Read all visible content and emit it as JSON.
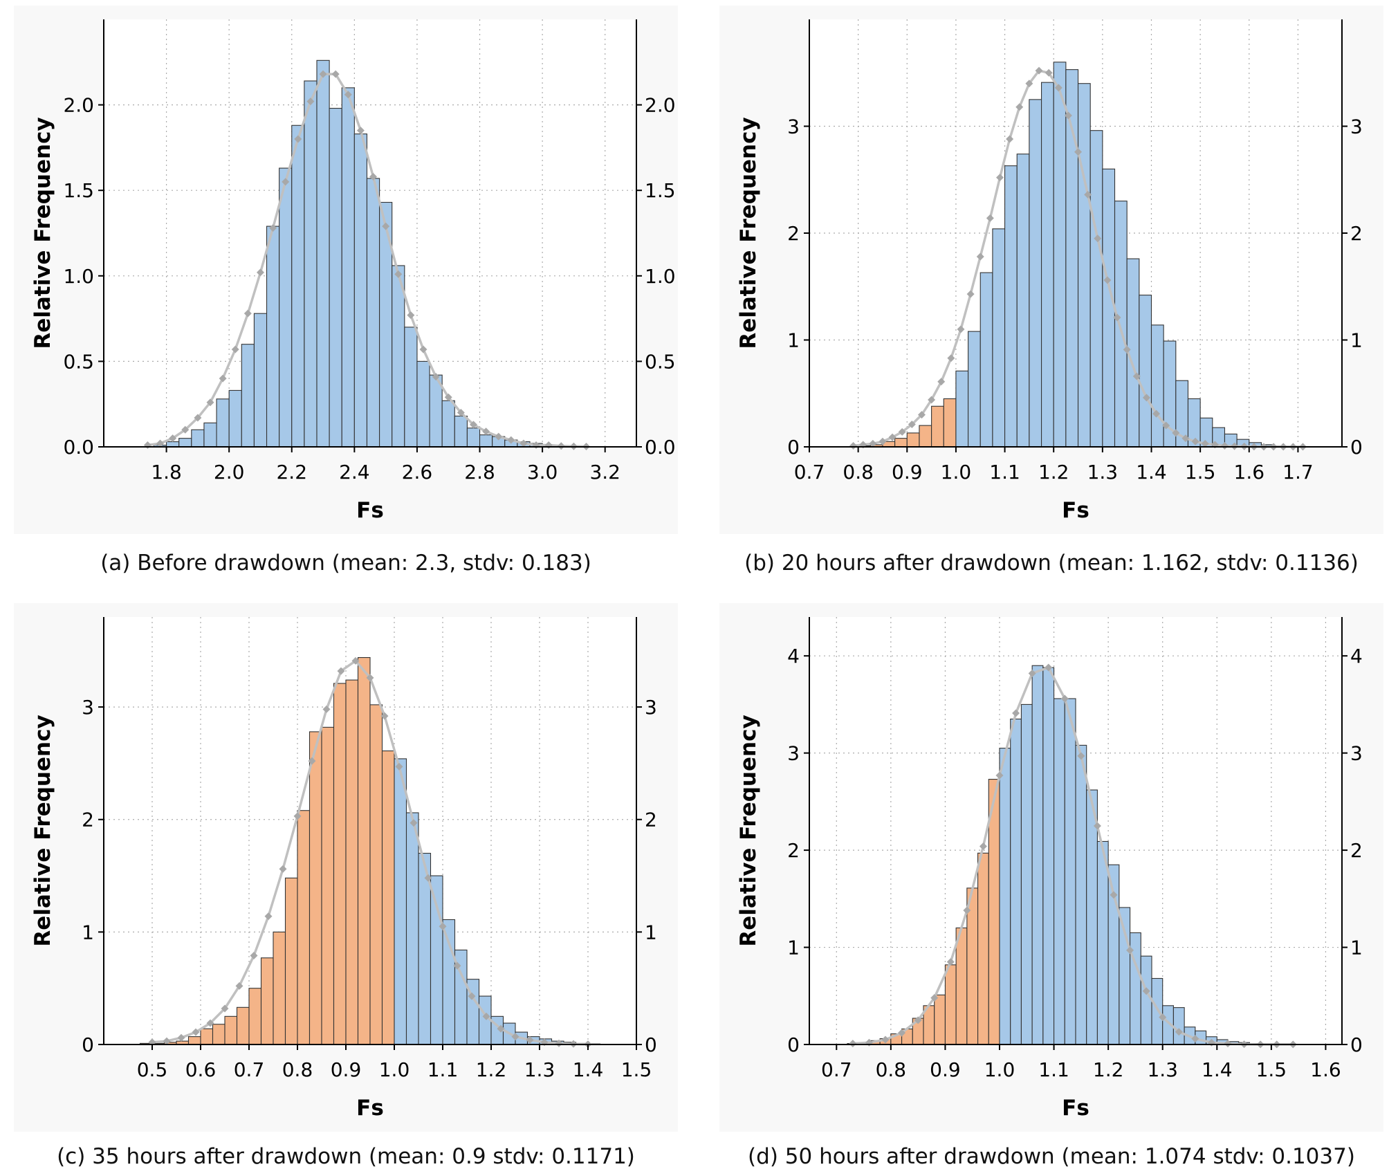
{
  "colors": {
    "blue_fill": "#a6c8e8",
    "orange_fill": "#f4b488",
    "bar_edge": "#333333",
    "curve": "#c0c0c0",
    "marker": "#a8a8a8",
    "plot_bg": "#f8f8f8",
    "grid": "#aaaaaa"
  },
  "chart_data": [
    {
      "type": "bar",
      "caption": "(a) Before drawdown (mean: 2.3, stdv: 0.183)",
      "xlabel": "Fs",
      "ylabel": "Relative Frequency",
      "xlim": [
        1.6,
        3.3
      ],
      "ylim": [
        0,
        2.5
      ],
      "xticks": [
        1.8,
        2.0,
        2.2,
        2.4,
        2.6,
        2.8,
        3.0,
        3.2
      ],
      "xtick_labels": [
        "1.8",
        "2.0",
        "2.2",
        "2.4",
        "2.6",
        "2.8",
        "3.0",
        "3.2"
      ],
      "yticks": [
        0,
        0.5,
        1.0,
        1.5,
        2.0
      ],
      "ytick_labels": [
        "0.0",
        "0.5",
        "1.0",
        "1.5",
        "2.0"
      ],
      "grid": true,
      "bin_start": 1.76,
      "bin_width": 0.04,
      "threshold": 1.0,
      "values": [
        0.01,
        0.03,
        0.05,
        0.1,
        0.14,
        0.28,
        0.33,
        0.6,
        0.78,
        1.29,
        1.63,
        1.88,
        2.14,
        2.26,
        1.98,
        2.1,
        1.83,
        1.57,
        1.43,
        1.06,
        0.7,
        0.5,
        0.42,
        0.27,
        0.18,
        0.11,
        0.07,
        0.06,
        0.04,
        0.03,
        0.02,
        0.01,
        0.005,
        0.004
      ],
      "fit_x": [
        1.74,
        1.78,
        1.82,
        1.86,
        1.9,
        1.94,
        1.98,
        2.02,
        2.06,
        2.1,
        2.14,
        2.18,
        2.22,
        2.26,
        2.3,
        2.34,
        2.38,
        2.42,
        2.46,
        2.5,
        2.54,
        2.58,
        2.62,
        2.66,
        2.7,
        2.74,
        2.78,
        2.82,
        2.86,
        2.9,
        2.94,
        2.98,
        3.02,
        3.06,
        3.1,
        3.14
      ],
      "fit_y": [
        0.01,
        0.02,
        0.05,
        0.1,
        0.17,
        0.26,
        0.4,
        0.57,
        0.78,
        1.02,
        1.28,
        1.55,
        1.8,
        2.02,
        2.18,
        2.18,
        2.06,
        1.85,
        1.58,
        1.29,
        1.01,
        0.77,
        0.57,
        0.41,
        0.29,
        0.2,
        0.13,
        0.09,
        0.06,
        0.04,
        0.02,
        0.01,
        0.01,
        0.005,
        0.003,
        0.002
      ]
    },
    {
      "type": "bar",
      "caption": "(b) 20 hours after drawdown (mean: 1.162, stdv: 0.1136)",
      "xlabel": "Fs",
      "ylabel": "Relative Frequency",
      "xlim": [
        0.7,
        1.79
      ],
      "ylim": [
        0,
        4.0
      ],
      "xticks": [
        0.7,
        0.8,
        0.9,
        1.0,
        1.1,
        1.2,
        1.3,
        1.4,
        1.5,
        1.6,
        1.7
      ],
      "xtick_labels": [
        "0.7",
        "0.8",
        "0.9",
        "1.0",
        "1.1",
        "1.2",
        "1.3",
        "1.4",
        "1.5",
        "1.6",
        "1.7"
      ],
      "yticks": [
        0,
        1,
        2,
        3
      ],
      "ytick_labels": [
        "0",
        "1",
        "2",
        "3"
      ],
      "grid": true,
      "bin_start": 0.8,
      "bin_width": 0.025,
      "threshold": 1.0,
      "values": [
        0.01,
        0.02,
        0.05,
        0.08,
        0.13,
        0.2,
        0.38,
        0.45,
        0.71,
        1.08,
        1.63,
        2.04,
        2.63,
        2.74,
        3.25,
        3.41,
        3.6,
        3.53,
        3.4,
        2.96,
        2.6,
        2.3,
        1.76,
        1.42,
        1.14,
        0.99,
        0.62,
        0.45,
        0.27,
        0.18,
        0.12,
        0.07,
        0.04,
        0.02,
        0.01,
        0.005,
        0.003,
        0.002
      ],
      "fit_x": [
        0.79,
        0.81,
        0.83,
        0.85,
        0.87,
        0.89,
        0.91,
        0.93,
        0.95,
        0.97,
        0.99,
        1.01,
        1.03,
        1.05,
        1.07,
        1.09,
        1.11,
        1.13,
        1.15,
        1.17,
        1.19,
        1.21,
        1.23,
        1.25,
        1.27,
        1.29,
        1.31,
        1.33,
        1.35,
        1.37,
        1.39,
        1.41,
        1.43,
        1.45,
        1.47,
        1.49,
        1.51,
        1.53,
        1.55,
        1.57,
        1.59,
        1.61,
        1.63,
        1.65,
        1.67,
        1.69,
        1.71
      ],
      "fit_y": [
        0.01,
        0.02,
        0.03,
        0.05,
        0.09,
        0.14,
        0.21,
        0.3,
        0.44,
        0.61,
        0.83,
        1.1,
        1.43,
        1.78,
        2.14,
        2.52,
        2.88,
        3.18,
        3.4,
        3.52,
        3.5,
        3.36,
        3.1,
        2.76,
        2.36,
        1.95,
        1.56,
        1.21,
        0.91,
        0.66,
        0.46,
        0.31,
        0.2,
        0.13,
        0.08,
        0.05,
        0.03,
        0.02,
        0.01,
        0.006,
        0.004,
        0.002,
        0.001,
        0.001,
        0.001,
        0.001,
        0.001
      ]
    },
    {
      "type": "bar",
      "caption": "(c) 35 hours after drawdown (mean: 0.9 stdv: 0.1171)",
      "xlabel": "Fs",
      "ylabel": "Relative Frequency",
      "xlim": [
        0.4,
        1.5
      ],
      "ylim": [
        0,
        3.8
      ],
      "xticks": [
        0.5,
        0.6,
        0.7,
        0.8,
        0.9,
        1.0,
        1.1,
        1.2,
        1.3,
        1.4,
        1.5
      ],
      "xtick_labels": [
        "0.5",
        "0.6",
        "0.7",
        "0.8",
        "0.9",
        "1.0",
        "1.1",
        "1.2",
        "1.3",
        "1.4",
        "1.5"
      ],
      "yticks": [
        0,
        1,
        2,
        3
      ],
      "ytick_labels": [
        "0",
        "1",
        "2",
        "3"
      ],
      "grid": true,
      "bin_start": 0.475,
      "bin_width": 0.025,
      "threshold": 1.0,
      "values": [
        0.01,
        0.01,
        0.02,
        0.03,
        0.07,
        0.14,
        0.18,
        0.25,
        0.33,
        0.5,
        0.77,
        1.0,
        1.48,
        2.08,
        2.78,
        2.82,
        3.21,
        3.24,
        3.44,
        3.02,
        2.61,
        2.54,
        2.06,
        1.7,
        1.5,
        1.11,
        0.84,
        0.58,
        0.43,
        0.25,
        0.19,
        0.11,
        0.07,
        0.05,
        0.03,
        0.02,
        0.01,
        0.005
      ],
      "fit_x": [
        0.5,
        0.53,
        0.56,
        0.59,
        0.62,
        0.65,
        0.68,
        0.71,
        0.74,
        0.77,
        0.8,
        0.83,
        0.86,
        0.89,
        0.92,
        0.95,
        0.98,
        1.01,
        1.04,
        1.07,
        1.1,
        1.13,
        1.16,
        1.19,
        1.22,
        1.25,
        1.28,
        1.31,
        1.34,
        1.37,
        1.4
      ],
      "fit_y": [
        0.02,
        0.03,
        0.06,
        0.11,
        0.19,
        0.32,
        0.52,
        0.79,
        1.14,
        1.56,
        2.03,
        2.52,
        2.98,
        3.32,
        3.41,
        3.26,
        2.92,
        2.47,
        1.97,
        1.48,
        1.05,
        0.7,
        0.43,
        0.25,
        0.14,
        0.07,
        0.04,
        0.02,
        0.01,
        0.005,
        0.002
      ]
    },
    {
      "type": "bar",
      "caption": "(d) 50 hours after drawdown (mean: 1.074 stdv: 0.1037)",
      "xlabel": "Fs",
      "ylabel": "Relative Frequency",
      "xlim": [
        0.65,
        1.63
      ],
      "ylim": [
        0,
        4.4
      ],
      "xticks": [
        0.7,
        0.8,
        0.9,
        1.0,
        1.1,
        1.2,
        1.3,
        1.4,
        1.5,
        1.6
      ],
      "xtick_labels": [
        "0.7",
        "0.8",
        "0.9",
        "1.0",
        "1.1",
        "1.2",
        "1.3",
        "1.4",
        "1.5",
        "1.6"
      ],
      "yticks": [
        0,
        1,
        2,
        3,
        4
      ],
      "ytick_labels": [
        "0",
        "1",
        "2",
        "3",
        "4"
      ],
      "grid": true,
      "bin_start": 0.72,
      "bin_width": 0.02,
      "threshold": 1.0,
      "values": [
        0.01,
        0.02,
        0.04,
        0.06,
        0.11,
        0.16,
        0.27,
        0.4,
        0.51,
        0.82,
        1.2,
        1.61,
        1.97,
        2.73,
        3.05,
        3.35,
        3.5,
        3.9,
        3.88,
        3.56,
        3.56,
        3.08,
        2.62,
        2.09,
        1.85,
        1.41,
        1.15,
        0.91,
        0.68,
        0.4,
        0.38,
        0.18,
        0.14,
        0.08,
        0.05,
        0.03,
        0.02,
        0.01
      ],
      "fit_x": [
        0.73,
        0.76,
        0.79,
        0.82,
        0.85,
        0.88,
        0.91,
        0.94,
        0.97,
        1.0,
        1.03,
        1.06,
        1.09,
        1.12,
        1.15,
        1.18,
        1.21,
        1.24,
        1.27,
        1.3,
        1.33,
        1.36,
        1.39,
        1.42,
        1.45,
        1.48,
        1.51,
        1.54
      ],
      "fit_y": [
        0.01,
        0.02,
        0.05,
        0.12,
        0.25,
        0.48,
        0.85,
        1.38,
        2.04,
        2.77,
        3.41,
        3.82,
        3.88,
        3.56,
        2.97,
        2.25,
        1.54,
        0.97,
        0.55,
        0.28,
        0.13,
        0.06,
        0.02,
        0.01,
        0.003,
        0.001,
        0.001,
        0.001
      ]
    }
  ]
}
